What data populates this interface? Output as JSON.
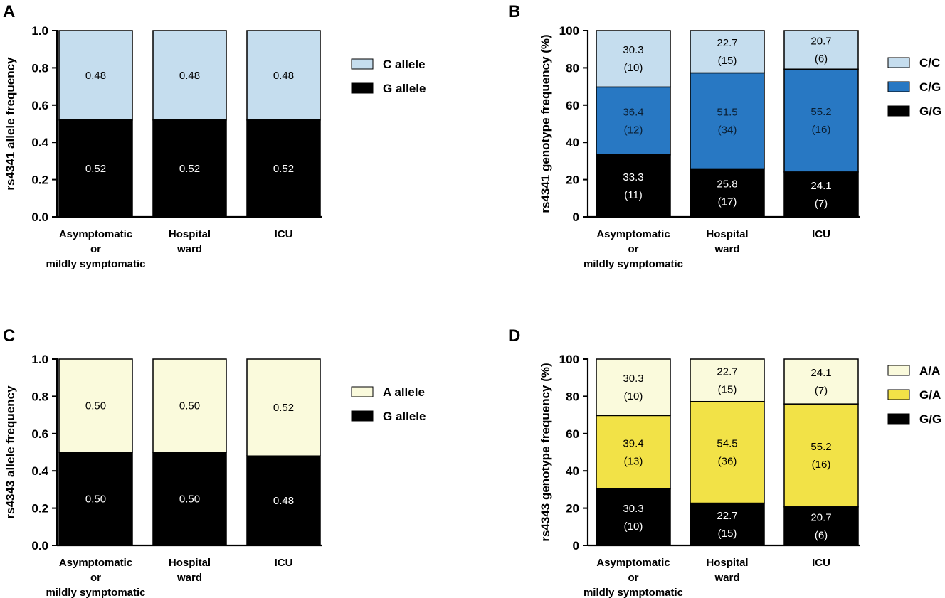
{
  "chart_data": [
    {
      "panel": "A",
      "type": "bar",
      "stacked": true,
      "categories": [
        "Asymptomatic\nor\nmildly  symptomatic",
        "Hospital\nward",
        "ICU"
      ],
      "ylabel": "rs4341 allele frequency",
      "ylim": [
        0,
        1.0
      ],
      "yticks": [
        "0.0",
        "0.2",
        "0.4",
        "0.6",
        "0.8",
        "1.0"
      ],
      "ytick_values": [
        0,
        0.2,
        0.4,
        0.6,
        0.8,
        1.0
      ],
      "series": [
        {
          "name": "G allele",
          "color": "#000000",
          "label_color": "#ffffff",
          "values": [
            0.52,
            0.52,
            0.52
          ],
          "labels": [
            [
              "0.52"
            ],
            [
              "0.52"
            ],
            [
              "0.52"
            ]
          ]
        },
        {
          "name": "C allele",
          "color": "#c5ddee",
          "label_color": "#000000",
          "values": [
            0.48,
            0.48,
            0.48
          ],
          "labels": [
            [
              "0.48"
            ],
            [
              "0.48"
            ],
            [
              "0.48"
            ]
          ]
        }
      ],
      "legend": [
        "C allele",
        "G allele"
      ]
    },
    {
      "panel": "B",
      "type": "bar",
      "stacked": true,
      "categories": [
        "Asymptomatic\nor\nmildly  symptomatic",
        "Hospital\nward",
        "ICU"
      ],
      "ylabel": "rs4341 genotype frequency (%)",
      "ylim": [
        0,
        100
      ],
      "yticks": [
        "0",
        "20",
        "40",
        "60",
        "80",
        "100"
      ],
      "ytick_values": [
        0,
        20,
        40,
        60,
        80,
        100
      ],
      "series": [
        {
          "name": "G/G",
          "color": "#000000",
          "label_color": "#ffffff",
          "values": [
            33.3,
            25.8,
            24.1
          ],
          "labels": [
            [
              "33.3",
              "(11)"
            ],
            [
              "25.8",
              "(17)"
            ],
            [
              "24.1",
              "(7)"
            ]
          ]
        },
        {
          "name": "C/G",
          "color": "#2878c3",
          "label_color": "#0b1f33",
          "values": [
            36.4,
            51.5,
            55.2
          ],
          "labels": [
            [
              "36.4",
              "(12)"
            ],
            [
              "51.5",
              "(34)"
            ],
            [
              "55.2",
              "(16)"
            ]
          ]
        },
        {
          "name": "C/C",
          "color": "#c5ddee",
          "label_color": "#000000",
          "values": [
            30.3,
            22.7,
            20.7
          ],
          "labels": [
            [
              "30.3",
              "(10)"
            ],
            [
              "22.7",
              "(15)"
            ],
            [
              "20.7",
              "(6)"
            ]
          ]
        }
      ],
      "legend": [
        "C/C",
        "C/G",
        "G/G"
      ]
    },
    {
      "panel": "C",
      "type": "bar",
      "stacked": true,
      "categories": [
        "Asymptomatic\nor\nmildly  symptomatic",
        "Hospital\nward",
        "ICU"
      ],
      "ylabel": "rs4343 allele frequency",
      "ylim": [
        0,
        1.0
      ],
      "yticks": [
        "0.0",
        "0.2",
        "0.4",
        "0.6",
        "0.8",
        "1.0"
      ],
      "ytick_values": [
        0,
        0.2,
        0.4,
        0.6,
        0.8,
        1.0
      ],
      "series": [
        {
          "name": "G allele",
          "color": "#000000",
          "label_color": "#ffffff",
          "values": [
            0.5,
            0.5,
            0.48
          ],
          "labels": [
            [
              "0.50"
            ],
            [
              "0.50"
            ],
            [
              "0.48"
            ]
          ]
        },
        {
          "name": "A allele",
          "color": "#fafadc",
          "label_color": "#000000",
          "values": [
            0.5,
            0.5,
            0.52
          ],
          "labels": [
            [
              "0.50"
            ],
            [
              "0.50"
            ],
            [
              "0.52"
            ]
          ]
        }
      ],
      "legend": [
        "A allele",
        "G allele"
      ]
    },
    {
      "panel": "D",
      "type": "bar",
      "stacked": true,
      "categories": [
        "Asymptomatic\nor\nmildly  symptomatic",
        "Hospital\nward",
        "ICU"
      ],
      "ylabel": "rs4343 genotype frequency (%)",
      "ylim": [
        0,
        100
      ],
      "yticks": [
        "0",
        "20",
        "40",
        "60",
        "80",
        "100"
      ],
      "ytick_values": [
        0,
        20,
        40,
        60,
        80,
        100
      ],
      "series": [
        {
          "name": "G/G",
          "color": "#000000",
          "label_color": "#ffffff",
          "values": [
            30.3,
            22.7,
            20.7
          ],
          "labels": [
            [
              "30.3",
              "(10)"
            ],
            [
              "22.7",
              "(15)"
            ],
            [
              "20.7",
              "(6)"
            ]
          ]
        },
        {
          "name": "G/A",
          "color": "#f2e247",
          "label_color": "#000000",
          "values": [
            39.4,
            54.5,
            55.2
          ],
          "labels": [
            [
              "39.4",
              "(13)"
            ],
            [
              "54.5",
              "(36)"
            ],
            [
              "55.2",
              "(16)"
            ]
          ]
        },
        {
          "name": "A/A",
          "color": "#fafadc",
          "label_color": "#000000",
          "values": [
            30.3,
            22.7,
            24.1
          ],
          "labels": [
            [
              "30.3",
              "(10)"
            ],
            [
              "22.7",
              "(15)"
            ],
            [
              "24.1",
              "(7)"
            ]
          ]
        }
      ],
      "legend": [
        "A/A",
        "G/A",
        "G/G"
      ]
    }
  ]
}
